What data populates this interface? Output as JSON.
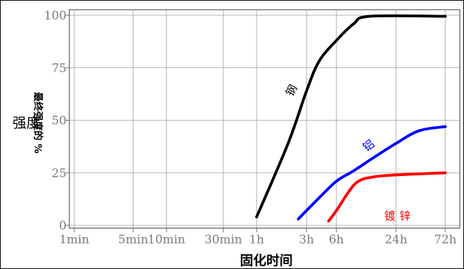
{
  "chart_data": {
    "type": "line",
    "title": "",
    "xlabel": "固化时间",
    "ylabel_main": "强度",
    "ylabel_rotated": "最终强度的 %",
    "x_ticks": [
      "1min",
      "5min",
      "10min",
      "30min",
      "1h",
      "3h",
      "6h",
      "24h",
      "72h"
    ],
    "y_ticks": [
      "0",
      "25",
      "50",
      "75",
      "100"
    ],
    "ylim": [
      0,
      100
    ],
    "grid": true,
    "series": [
      {
        "name": "钢",
        "color": "#000000",
        "points": [
          {
            "x": "1h",
            "y": 4
          },
          {
            "x": "2h",
            "y": 39
          },
          {
            "x": "3h",
            "y": 64
          },
          {
            "x": "4h",
            "y": 78
          },
          {
            "x": "6h",
            "y": 88
          },
          {
            "x": "9h",
            "y": 96
          },
          {
            "x": "13h",
            "y": 99.5
          },
          {
            "x": "72h",
            "y": 99.5
          }
        ]
      },
      {
        "name": "铝",
        "color": "#0000ff",
        "points": [
          {
            "x": "2.5h",
            "y": 3
          },
          {
            "x": "4h",
            "y": 13
          },
          {
            "x": "6h",
            "y": 21
          },
          {
            "x": "9h",
            "y": 26
          },
          {
            "x": "14h",
            "y": 32
          },
          {
            "x": "24h",
            "y": 39
          },
          {
            "x": "40h",
            "y": 45
          },
          {
            "x": "72h",
            "y": 47
          }
        ]
      },
      {
        "name": "镀锌",
        "color": "#ff0000",
        "points": [
          {
            "x": "5h",
            "y": 2
          },
          {
            "x": "6h",
            "y": 7
          },
          {
            "x": "8h",
            "y": 16
          },
          {
            "x": "10h",
            "y": 21
          },
          {
            "x": "14h",
            "y": 23
          },
          {
            "x": "24h",
            "y": 24
          },
          {
            "x": "72h",
            "y": 25
          }
        ]
      }
    ]
  }
}
